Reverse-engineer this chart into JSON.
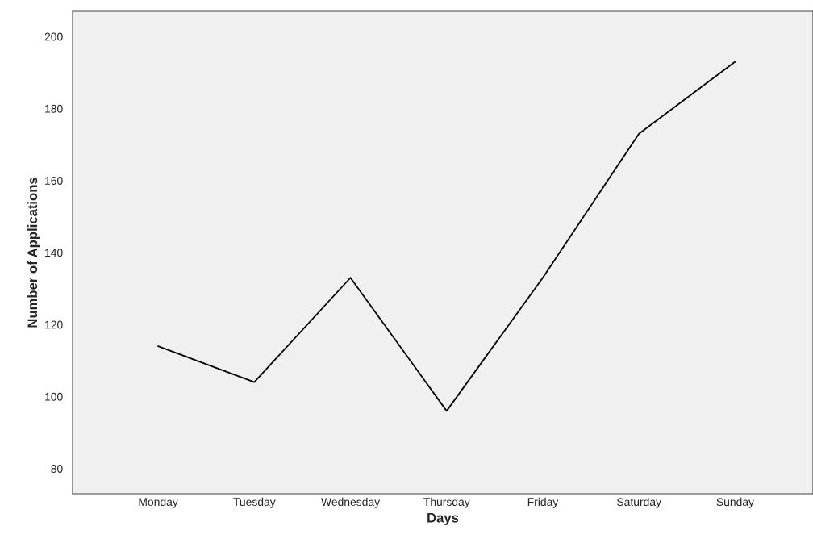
{
  "chart_data": {
    "type": "line",
    "xlabel": "Days",
    "ylabel": "Number of Applications",
    "categories": [
      "Monday",
      "Tuesday",
      "Wednesday",
      "Thursday",
      "Friday",
      "Saturday",
      "Sunday"
    ],
    "series": [
      {
        "color": "#000000",
        "values": [
          114,
          104,
          133,
          96,
          133,
          173,
          193
        ]
      }
    ],
    "ylim": [
      73,
      207
    ],
    "yticks": [
      80,
      100,
      120,
      140,
      160,
      180,
      200
    ],
    "grid": false,
    "legend": false,
    "marker": "none",
    "line_style": "solid"
  }
}
